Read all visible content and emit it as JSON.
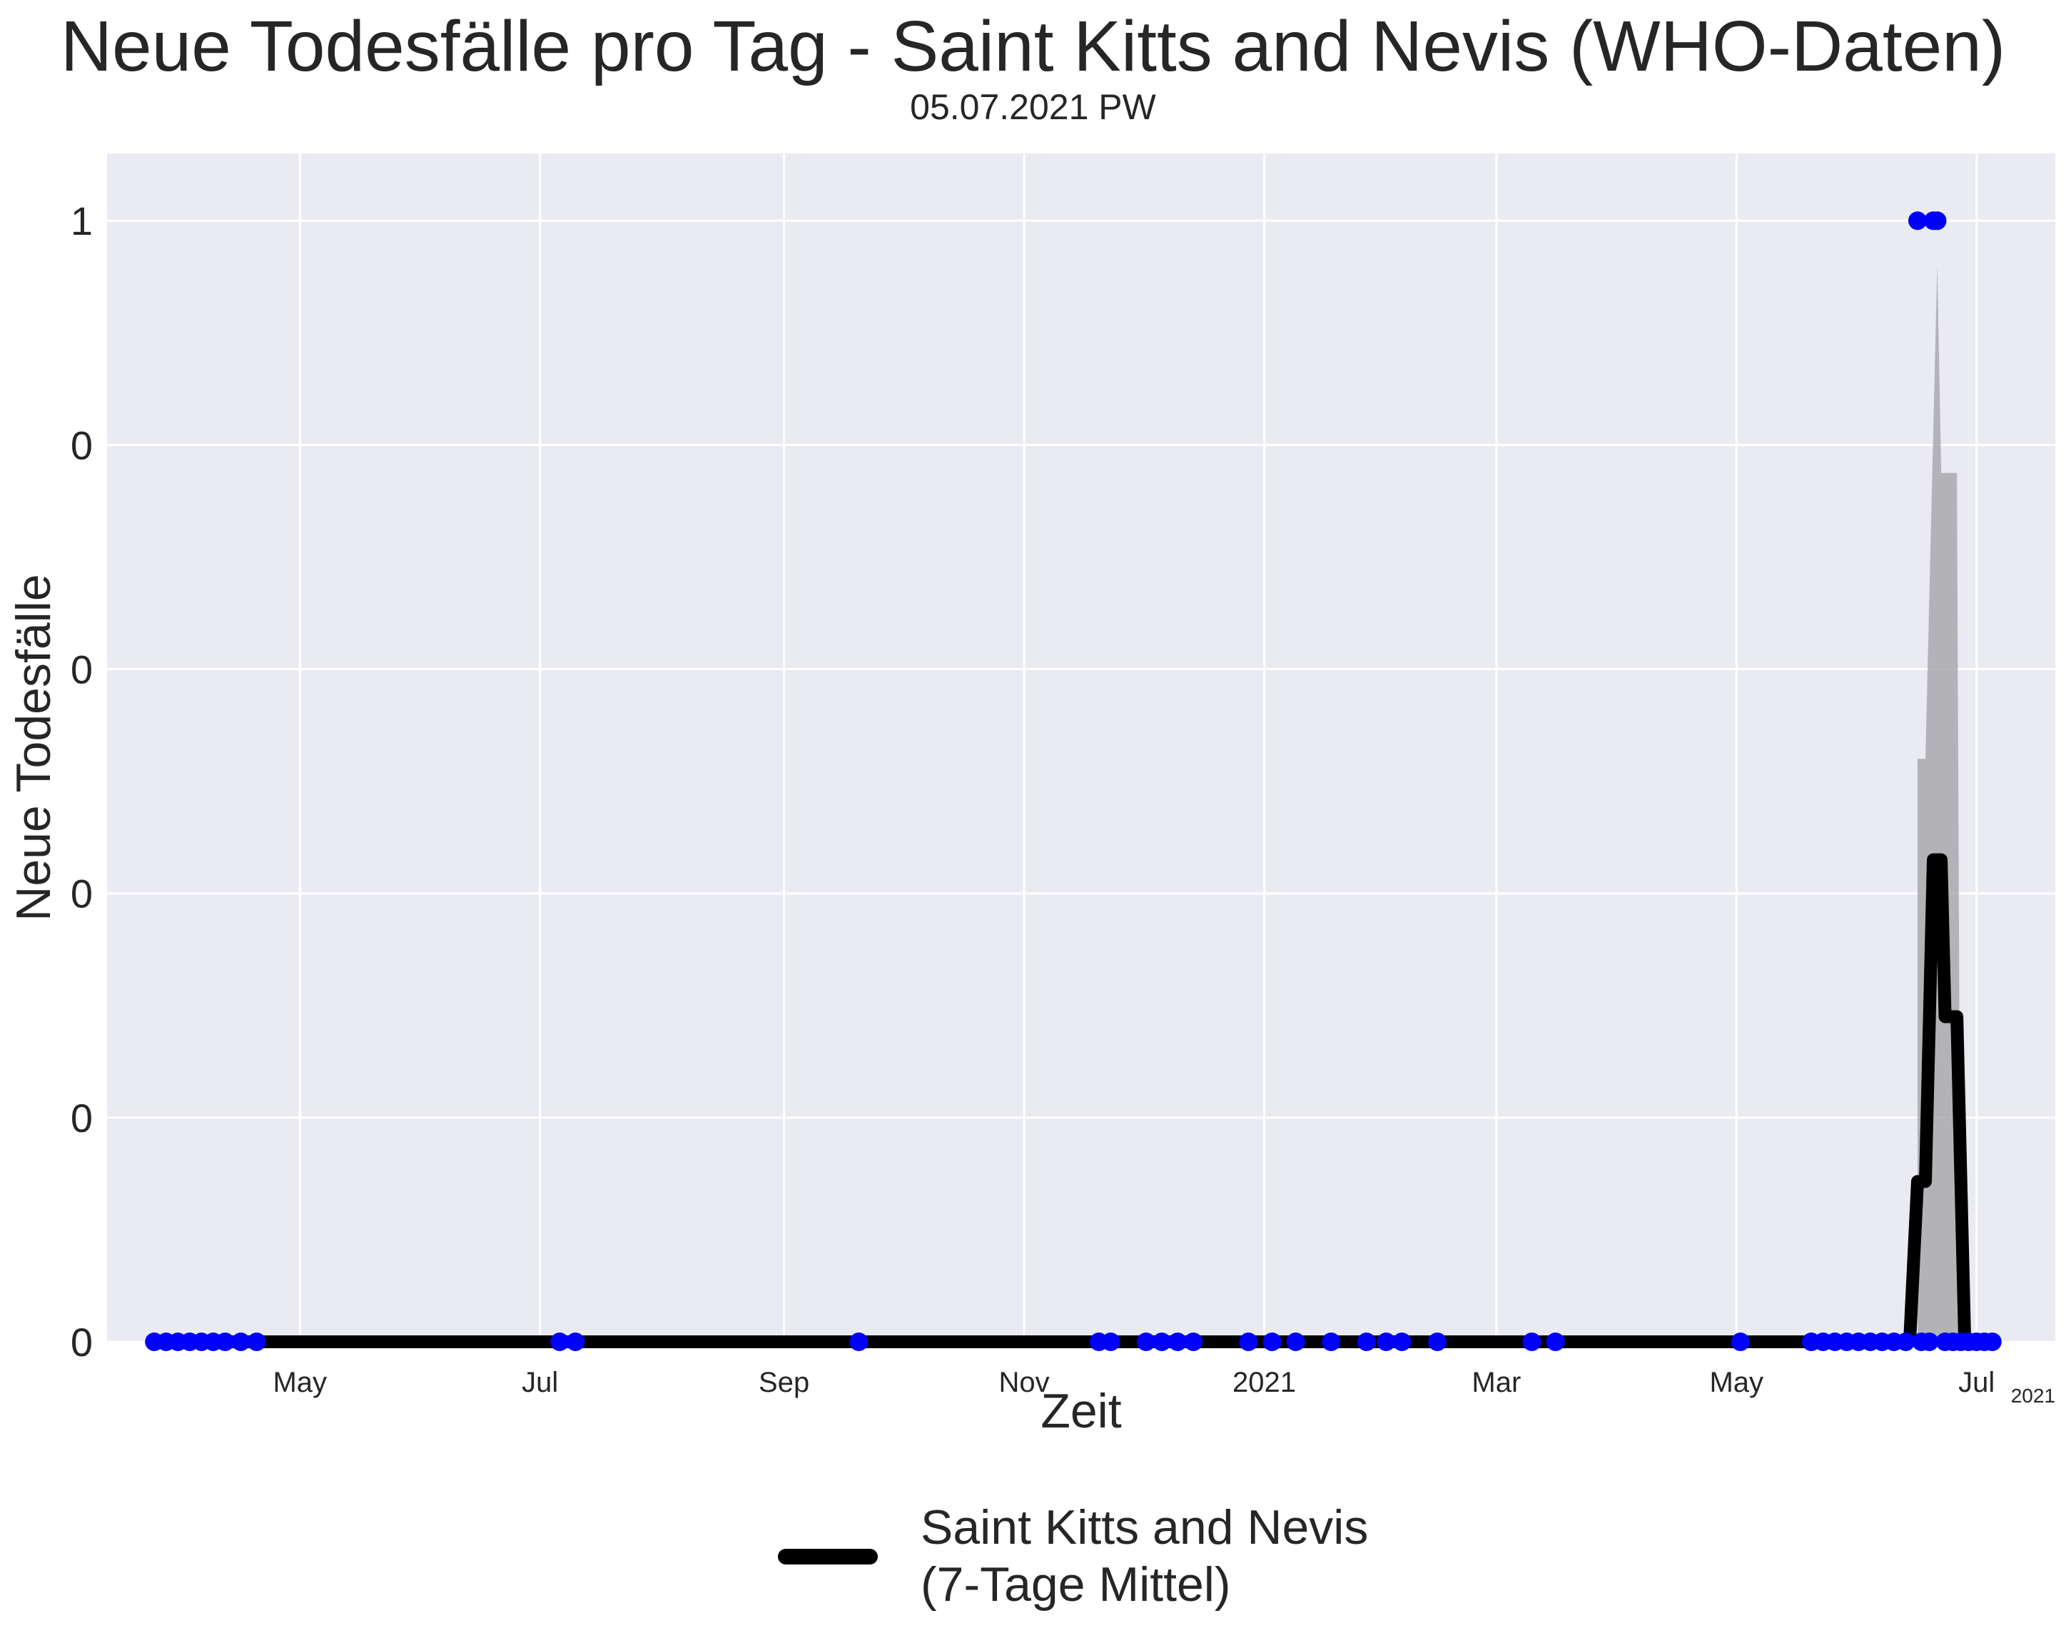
{
  "title": "Neue Todesfälle pro Tag - Saint Kitts and Nevis (WHO-Daten)",
  "subtitle": "05.07.2021 PW",
  "chart_data": {
    "type": "line",
    "title": "Neue Todesfälle pro Tag - Saint Kitts and Nevis (WHO-Daten)",
    "xlabel": "Zeit",
    "ylabel": "Neue Todesfälle",
    "x_range": [
      "2020-03-13",
      "2021-07-21"
    ],
    "y_range": [
      0,
      1.06
    ],
    "x_ticks": [
      {
        "date": "2020-05-01",
        "label": "May"
      },
      {
        "date": "2020-07-01",
        "label": "Jul"
      },
      {
        "date": "2020-09-01",
        "label": "Sep"
      },
      {
        "date": "2020-11-01",
        "label": "Nov"
      },
      {
        "date": "2021-01-01",
        "label": "2021"
      },
      {
        "date": "2021-03-01",
        "label": "Mar"
      },
      {
        "date": "2021-05-01",
        "label": "May"
      },
      {
        "date": "2021-07-01",
        "label": "Jul"
      }
    ],
    "x_offset_label": "2021",
    "y_ticks": [
      {
        "value": 0,
        "label": "0"
      },
      {
        "value": 0.2,
        "label": "0"
      },
      {
        "value": 0.4,
        "label": "0"
      },
      {
        "value": 0.6,
        "label": "0"
      },
      {
        "value": 0.8,
        "label": "0"
      },
      {
        "value": 1.0,
        "label": "1"
      }
    ],
    "grid": true,
    "legend_position": "bottom-center",
    "series": [
      {
        "name": "Saint Kitts and Nevis (7-Tage Mittel)",
        "kind": "line",
        "color": "#000000",
        "points": [
          [
            "2020-03-25",
            0
          ],
          [
            "2021-06-14",
            0
          ],
          [
            "2021-06-16",
            0.143
          ],
          [
            "2021-06-18",
            0.143
          ],
          [
            "2021-06-20",
            0.43
          ],
          [
            "2021-06-22",
            0.43
          ],
          [
            "2021-06-23",
            0.29
          ],
          [
            "2021-06-26",
            0.29
          ],
          [
            "2021-06-28",
            0
          ],
          [
            "2021-07-05",
            0
          ]
        ]
      },
      {
        "name": "band",
        "kind": "area",
        "color": "#a9a9ad",
        "points": [
          [
            "2021-06-15",
            0
          ],
          [
            "2021-06-16",
            0
          ],
          [
            "2021-06-16",
            0.52
          ],
          [
            "2021-06-18",
            0.52
          ],
          [
            "2021-06-21",
            0.96
          ],
          [
            "2021-06-22",
            0.78
          ],
          [
            "2021-06-22",
            0.775
          ],
          [
            "2021-06-26",
            0.775
          ],
          [
            "2021-06-27",
            0
          ],
          [
            "2021-06-28",
            0
          ]
        ]
      },
      {
        "name": "daily",
        "kind": "scatter",
        "color": "#0000ff",
        "points": [
          [
            "2020-03-25",
            0
          ],
          [
            "2020-03-28",
            0
          ],
          [
            "2020-03-31",
            0
          ],
          [
            "2020-04-03",
            0
          ],
          [
            "2020-04-06",
            0
          ],
          [
            "2020-04-09",
            0
          ],
          [
            "2020-04-12",
            0
          ],
          [
            "2020-04-16",
            0
          ],
          [
            "2020-04-20",
            0
          ],
          [
            "2020-07-06",
            0
          ],
          [
            "2020-07-10",
            0
          ],
          [
            "2020-09-20",
            0
          ],
          [
            "2020-11-20",
            0
          ],
          [
            "2020-11-23",
            0
          ],
          [
            "2020-12-02",
            0
          ],
          [
            "2020-12-06",
            0
          ],
          [
            "2020-12-10",
            0
          ],
          [
            "2020-12-14",
            0
          ],
          [
            "2020-12-28",
            0
          ],
          [
            "2021-01-03",
            0
          ],
          [
            "2021-01-09",
            0
          ],
          [
            "2021-01-18",
            0
          ],
          [
            "2021-01-27",
            0
          ],
          [
            "2021-02-01",
            0
          ],
          [
            "2021-02-05",
            0
          ],
          [
            "2021-02-14",
            0
          ],
          [
            "2021-03-10",
            0
          ],
          [
            "2021-03-16",
            0
          ],
          [
            "2021-05-02",
            0
          ],
          [
            "2021-05-20",
            0
          ],
          [
            "2021-05-23",
            0
          ],
          [
            "2021-05-26",
            0
          ],
          [
            "2021-05-29",
            0
          ],
          [
            "2021-06-01",
            0
          ],
          [
            "2021-06-04",
            0
          ],
          [
            "2021-06-07",
            0
          ],
          [
            "2021-06-10",
            0
          ],
          [
            "2021-06-13",
            0
          ],
          [
            "2021-06-16",
            1
          ],
          [
            "2021-06-20",
            1
          ],
          [
            "2021-06-21",
            1
          ],
          [
            "2021-06-17",
            0
          ],
          [
            "2021-06-19",
            0
          ],
          [
            "2021-06-23",
            0
          ],
          [
            "2021-06-25",
            0
          ],
          [
            "2021-06-27",
            0
          ],
          [
            "2021-06-29",
            0
          ],
          [
            "2021-07-01",
            0
          ],
          [
            "2021-07-03",
            0
          ],
          [
            "2021-07-05",
            0
          ]
        ]
      }
    ],
    "legend": [
      "Saint Kitts and Nevis\n(7-Tage Mittel)"
    ]
  }
}
